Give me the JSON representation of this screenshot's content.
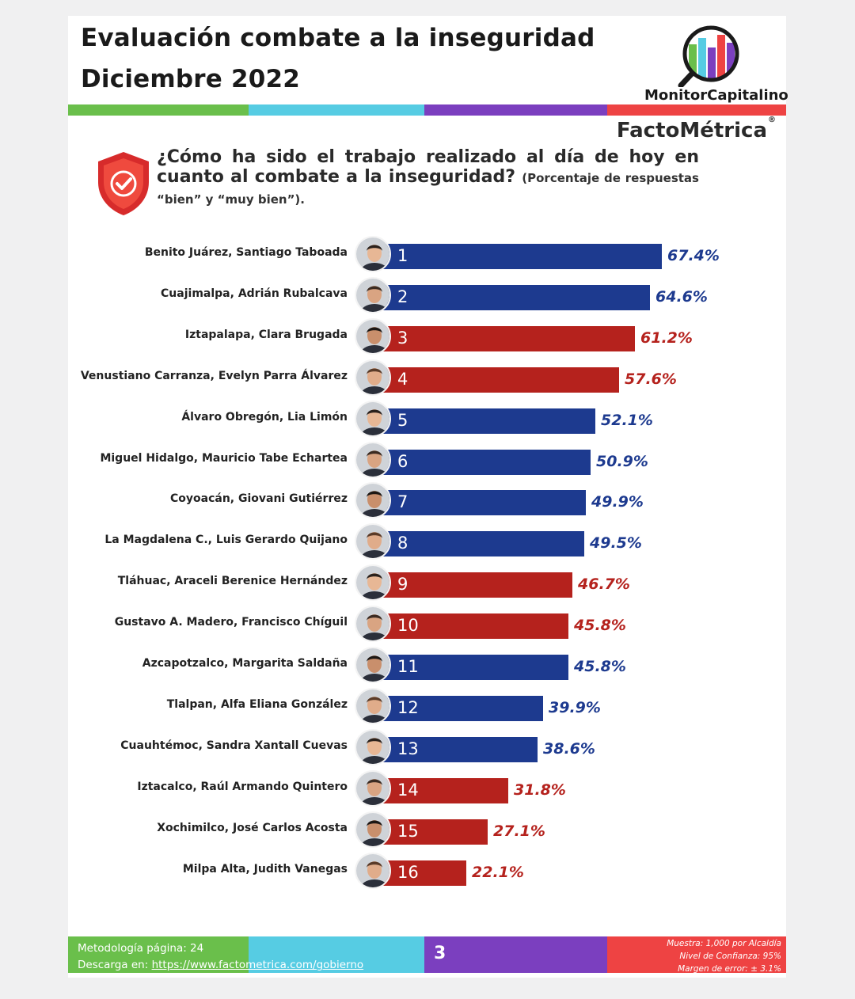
{
  "header": {
    "title_line1": "Evaluación combate a la inseguridad",
    "title_line2": "Diciembre 2022",
    "logo_name": "MonitorCapitalino",
    "brand": "FactoMétrica",
    "brand_mark": "®"
  },
  "colors": {
    "green": "#6abf4b",
    "cyan": "#56cce3",
    "purple": "#7b3fbf",
    "red": "#ee4343",
    "bar_blue": "#1d3a8f",
    "bar_red": "#b5221d"
  },
  "question": {
    "text": "¿Cómo ha sido el trabajo realizado al día de hoy en cuanto al combate a la inseguridad?",
    "note": "(Porcentaje de respuestas “bien” y “muy bien”)."
  },
  "chart_data": {
    "type": "bar",
    "orientation": "horizontal",
    "categories": [
      "Benito Juárez, Santiago Taboada",
      "Cuajimalpa, Adrián Rubalcava",
      "Iztapalapa, Clara Brugada",
      "Venustiano Carranza, Evelyn Parra Álvarez",
      "Álvaro Obregón, Lia Limón",
      "Miguel Hidalgo, Mauricio Tabe Echartea",
      "Coyoacán, Giovani Gutiérrez",
      "La Magdalena C., Luis Gerardo Quijano",
      "Tláhuac, Araceli Berenice Hernández",
      "Gustavo A. Madero, Francisco Chíguil",
      "Azcapotzalco, Margarita Saldaña",
      "Tlalpan, Alfa Eliana González",
      "Cuauhtémoc, Sandra Xantall Cuevas",
      "Iztacalco, Raúl Armando Quintero",
      "Xochimilco, José Carlos Acosta",
      "Milpa Alta, Judith Vanegas"
    ],
    "ranks": [
      "1",
      "2",
      "3",
      "4",
      "5",
      "6",
      "7",
      "8",
      "9",
      "10",
      "11",
      "12",
      "13",
      "14",
      "15",
      "16"
    ],
    "values": [
      67.4,
      64.6,
      61.2,
      57.6,
      52.1,
      50.9,
      49.9,
      49.5,
      46.7,
      45.8,
      45.8,
      39.9,
      38.6,
      31.8,
      27.1,
      22.1
    ],
    "value_labels": [
      "67.4%",
      "64.6%",
      "61.2%",
      "57.6%",
      "52.1%",
      "50.9%",
      "49.9%",
      "49.5%",
      "46.7%",
      "45.8%",
      "45.8%",
      "39.9%",
      "38.6%",
      "31.8%",
      "27.1%",
      "22.1%"
    ],
    "bar_colors": [
      "blue",
      "blue",
      "red",
      "red",
      "blue",
      "blue",
      "blue",
      "blue",
      "red",
      "red",
      "blue",
      "blue",
      "blue",
      "red",
      "red",
      "red"
    ],
    "xlim": [
      0,
      67.4
    ]
  },
  "footer": {
    "methodology": "Metodología página: 24",
    "download_label": "Descarga en: ",
    "download_url": "https://www.factometrica.com/gobierno",
    "page_number": "3",
    "sample": "Muestra:  1,000 por Alcaldía",
    "confidence": "Nivel de Confianza: 95%",
    "margin": "Margen de error: ± 3.1%"
  }
}
